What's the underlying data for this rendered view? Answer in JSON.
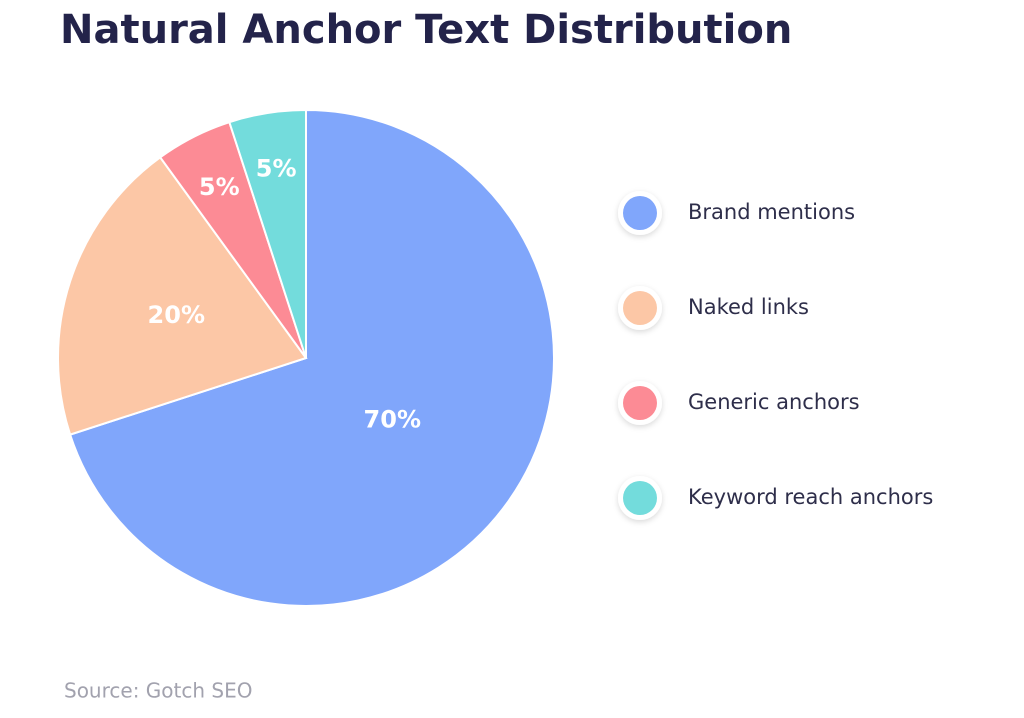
{
  "chart_data": {
    "type": "pie",
    "title": "Natural Anchor Text Distribution",
    "categories": [
      "Brand mentions",
      "Naked links",
      "Generic anchors",
      "Keyword reach anchors"
    ],
    "values": [
      70,
      20,
      5,
      5
    ],
    "value_labels": [
      "70%",
      "20%",
      "5%",
      "5%"
    ],
    "colors": [
      "#80a6fb",
      "#fcc7a6",
      "#fc8b95",
      "#73dcdc"
    ],
    "source": "Source: Gotch SEO"
  }
}
